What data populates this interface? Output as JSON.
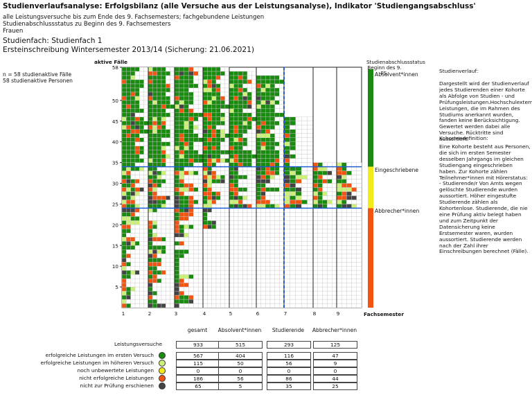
{
  "header": {
    "title": "Studienverlaufsanalyse: Erfolgsbilanz (alle Versuche aus der Leistungsanalyse), Indikator 'Studiengangsabschluss'",
    "lines": [
      "alle Leistungsversuche bis zum Ende des 9. Fachsemesters; fachgebundene Leistungen",
      "Studienabschlussstatus zu Beginn des 9. Fachsemesters",
      "Frauen"
    ],
    "studienfach": "Studienfach: Studienfach 1",
    "kohorte": "Ersteinschreibung Wintersemester 2013/14 (Sicherung: 21.06.2021)"
  },
  "info": {
    "faelle": "n = 58 studienaktive Fälle",
    "personen": "58 studienaktive Personen"
  },
  "chart_data": {
    "type": "heatmap",
    "ylabel": "aktive Fälle",
    "xlabel": "Fachsemester",
    "y_ticks": [
      5,
      10,
      15,
      20,
      25,
      30,
      35,
      40,
      45,
      50,
      58
    ],
    "x_ticks": [
      "1",
      "2",
      "3",
      "4",
      "5",
      "6",
      "7",
      "8",
      "9"
    ],
    "ylim": [
      0,
      58
    ],
    "status_boundaries": {
      "absolventen_from": 34,
      "eingeschriebene_from": 24
    },
    "semester_active_max": [
      58,
      58,
      58,
      58,
      57,
      56,
      46,
      35,
      35
    ],
    "status_legend": {
      "title": "Studienabschlussstatus Beginn des 9. FS.",
      "items": [
        {
          "label": "Absolvent*innen",
          "color": "#1a8a10"
        },
        {
          "label": "Eingeschriebene",
          "color": "#f2ec1a"
        },
        {
          "label": "Abbrecher*innen",
          "color": "#f25512"
        }
      ]
    }
  },
  "right_text": {
    "p1_title": "Studienverlauf:",
    "p1": "Dargestellt wird der Studienverlauf jedes Studierenden einer Kohorte als Abfolge von Studien - und Prüfungsleistungen.Hochschulexterne Leistungen, die im Rahmen des Studiums anerkannt wurden, fanden keine Berücksichtigung. Gewertet werden dabei alle Versuche. Rücktritte sind aussortiert.",
    "p2_title": "Kohortendefinition:",
    "p2": "Eine Kohorte besteht aus Personen, die sich im ersten Semester desselben Jahrgangs im gleichen Studiengang eingeschrieben haben. Zur Kohorte zählen Teilnehmer*innen mit Hörerstatus: - Studierende/r Von Amts wegen gelöschte Studierende wurden aussortiert. Höher eingestufte Studierende zählen als Kohortenlose. Studierende, die nie eine Prüfung aktiv belegt haben und zum Zeitpunkt der Datensicherung keine Erstsemester waren, wurden aussortiert. Studierende werden nach der Zahl ihrer Einschreibungen berechnet (Fälle)."
  },
  "stats": {
    "columns": [
      "gesamt",
      "Absolvent*innen",
      "Studierende",
      "Abbrecher*innen"
    ],
    "rows": [
      {
        "label": "Leistungsversuche",
        "values": [
          "933",
          "515",
          "293",
          "125"
        ],
        "dot": ""
      },
      {
        "label": "erfolgreiche Leistungen im ersten Versuch",
        "values": [
          "567",
          "404",
          "116",
          "47"
        ],
        "dot": "#1a8a10"
      },
      {
        "label": "erfolgreiche Leistungen im höheren Versuch",
        "values": [
          "115",
          "50",
          "56",
          "9"
        ],
        "dot": "#ccf07a"
      },
      {
        "label": "noch unbewertete Leistungen",
        "values": [
          "0",
          "0",
          "0",
          "0"
        ],
        "dot": "#f2ec1a"
      },
      {
        "label": "nicht erfolgreiche Leistungen",
        "values": [
          "186",
          "56",
          "86",
          "44"
        ],
        "dot": "#f25512"
      },
      {
        "label": "nicht zur Prüfung erschienen",
        "values": [
          "65",
          "5",
          "35",
          "25"
        ],
        "dot": "#444444"
      }
    ]
  }
}
